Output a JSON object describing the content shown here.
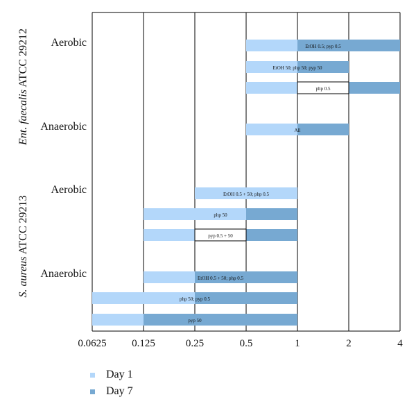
{
  "chart_data": {
    "type": "bar",
    "subtype": "floating-range-bar",
    "x_scale": "log2",
    "x_ticks": [
      "0.0625",
      "0.125",
      "0.25",
      "0.5",
      "1",
      "2",
      "4"
    ],
    "xlim": [
      0.0625,
      4
    ],
    "grid": "vertical",
    "legend_position": "bottom-left",
    "groups": [
      {
        "label": "Ent. faecalis ATCC 29212",
        "label_italic": "Ent. faecalis",
        "label_rest": " ATCC 29212"
      },
      {
        "label": "S. aureus ATCC 29213",
        "label_italic": "S. aureus",
        "label_rest": " ATCC 29213"
      }
    ],
    "conditions": [
      "Aerobic",
      "Anaerobic",
      "Aerobic",
      "Anaerobic"
    ],
    "series": [
      {
        "name": "Day 1",
        "color": "#b3d7fa"
      },
      {
        "name": "Day 7",
        "color": "#77a9d2"
      }
    ],
    "rows": [
      {
        "group": 0,
        "condition": "Aerobic",
        "day1": [
          0.5,
          1
        ],
        "day7": [
          1,
          4
        ],
        "gap": null,
        "label": "EtOH 0.5; pyp 0.5"
      },
      {
        "group": 0,
        "condition": "",
        "day1": [
          0.5,
          1
        ],
        "day7": [
          1,
          2
        ],
        "gap": null,
        "label": "EtOH 50; php 50; pyp 50"
      },
      {
        "group": 0,
        "condition": "",
        "day1": [
          0.5,
          1
        ],
        "day7": [
          2,
          4
        ],
        "gap": [
          1,
          2
        ],
        "label": "php 0.5"
      },
      {
        "group": 0,
        "condition": "Anaerobic",
        "day1": [
          0.5,
          1
        ],
        "day7": [
          1,
          2
        ],
        "gap": null,
        "label": "All"
      },
      {
        "group": 1,
        "condition": "Aerobic",
        "day1": [
          0.25,
          1
        ],
        "day7": null,
        "gap": null,
        "label": "EtOH 0.5 + 50; php 0.5"
      },
      {
        "group": 1,
        "condition": "",
        "day1": [
          0.125,
          0.5
        ],
        "day7": [
          0.5,
          1
        ],
        "gap": null,
        "label": "php 50"
      },
      {
        "group": 1,
        "condition": "",
        "day1": [
          0.125,
          0.25
        ],
        "day7": [
          0.5,
          1
        ],
        "gap": [
          0.25,
          0.5
        ],
        "label": "pyp 0.5 + 50"
      },
      {
        "group": 1,
        "condition": "Anaerobic",
        "day1": [
          0.125,
          0.25
        ],
        "day7": [
          0.25,
          1
        ],
        "gap": null,
        "label": "EtOH 0.5 + 50; php 0.5"
      },
      {
        "group": 1,
        "condition": "",
        "day1": [
          0.0625,
          0.25
        ],
        "day7": [
          0.25,
          1
        ],
        "gap": null,
        "label": "php 50; pyp 0.5"
      },
      {
        "group": 1,
        "condition": "",
        "day1": [
          0.0625,
          0.125
        ],
        "day7": [
          0.125,
          1
        ],
        "gap": null,
        "label": "pyp 50"
      }
    ]
  }
}
